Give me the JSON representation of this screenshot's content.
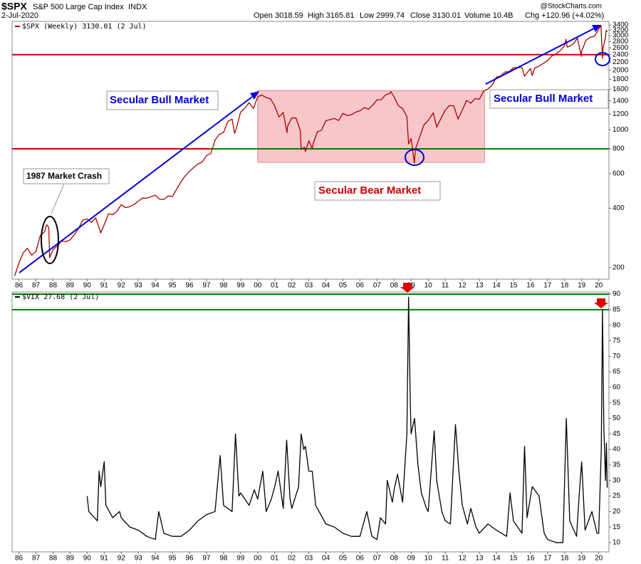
{
  "chart_data": [
    {
      "type": "line",
      "title": "$SPX",
      "subtitle": "S&P 500 Large Cap Index",
      "exchange": "INDX",
      "date": "2-Jul-2020",
      "stats": [
        "Open 3018.59",
        "High 3165.81",
        "Low 2999.74",
        "Close 3130.01",
        "Volume 10.4B",
        "Chg +120.96 (+4.02%)"
      ],
      "source": "@StockCharts.com",
      "annotations": [
        "Secular Bull Market",
        "Secular Bull Market",
        "Secular Bear Market",
        "1987 Market Crash"
      ],
      "log_y": true,
      "xlim": [
        1985.6,
        2020.6
      ],
      "ylim": [
        175,
        3540
      ],
      "yticks": [
        200,
        400,
        600,
        800,
        1000,
        1200,
        1400,
        1600,
        1800,
        2000,
        2200,
        2400,
        2600,
        2800,
        3000,
        3200,
        3400
      ],
      "xticks": [
        {
          "value": 1986,
          "label": "86"
        },
        {
          "value": 1987,
          "label": "87"
        },
        {
          "value": 1988,
          "label": "88"
        },
        {
          "value": 1989,
          "label": "89"
        },
        {
          "value": 1990,
          "label": "90"
        },
        {
          "value": 1991,
          "label": "91"
        },
        {
          "value": 1992,
          "label": "92"
        },
        {
          "value": 1993,
          "label": "93"
        },
        {
          "value": 1994,
          "label": "94"
        },
        {
          "value": 1995,
          "label": "95"
        },
        {
          "value": 1996,
          "label": "96"
        },
        {
          "value": 1997,
          "label": "97"
        },
        {
          "value": 1998,
          "label": "98"
        },
        {
          "value": 1999,
          "label": "99"
        },
        {
          "value": 2000,
          "label": "00"
        },
        {
          "value": 2001,
          "label": "01"
        },
        {
          "value": 2002,
          "label": "02"
        },
        {
          "value": 2003,
          "label": "03"
        },
        {
          "value": 2004,
          "label": "04"
        },
        {
          "value": 2005,
          "label": "05"
        },
        {
          "value": 2006,
          "label": "06"
        },
        {
          "value": 2007,
          "label": "07"
        },
        {
          "value": 2008,
          "label": "08"
        },
        {
          "value": 2009,
          "label": "09"
        },
        {
          "value": 2010,
          "label": "10"
        },
        {
          "value": 2011,
          "label": "11"
        },
        {
          "value": 2012,
          "label": "12"
        },
        {
          "value": 2013,
          "label": "13"
        },
        {
          "value": 2014,
          "label": "14"
        },
        {
          "value": 2015,
          "label": "15"
        },
        {
          "value": 2016,
          "label": "16"
        },
        {
          "value": 2017,
          "label": "17"
        },
        {
          "value": 2018,
          "label": "18"
        },
        {
          "value": 2019,
          "label": "19"
        },
        {
          "value": 2020,
          "label": "20"
        }
      ],
      "shade": {
        "xlim": [
          2000.0,
          2013.3
        ],
        "ylim": [
          683,
          1580
        ],
        "color": "#f4b8bd"
      },
      "hlines": [
        {
          "value": 2400,
          "color": "#cc0000"
        },
        {
          "value": 800,
          "color": "#cc0000",
          "xlim": [
            1985.6,
            1997.2
          ]
        },
        {
          "value": 800,
          "color": "#008000",
          "xlim": [
            1997.2,
            2020.6
          ]
        }
      ],
      "x": [
        1985.75,
        1986,
        1986.25,
        1986.5,
        1986.75,
        1987,
        1987.25,
        1987.5,
        1987.62,
        1987.75,
        1987.8,
        1988,
        1988.25,
        1988.5,
        1988.75,
        1989,
        1989.25,
        1989.5,
        1989.75,
        1990,
        1990.25,
        1990.5,
        1990.8,
        1991,
        1991.25,
        1991.5,
        1991.75,
        1992,
        1992.25,
        1992.5,
        1992.75,
        1993,
        1993.25,
        1993.5,
        1993.75,
        1994,
        1994.25,
        1994.5,
        1994.75,
        1995,
        1995.25,
        1995.5,
        1995.75,
        1996,
        1996.25,
        1996.5,
        1996.75,
        1997,
        1997.25,
        1997.5,
        1997.75,
        1998,
        1998.25,
        1998.5,
        1998.65,
        1998.75,
        1999,
        1999.25,
        1999.5,
        1999.75,
        2000,
        2000.25,
        2000.5,
        2000.75,
        2001,
        2001.25,
        2001.5,
        2001.72,
        2001.75,
        2002,
        2002.25,
        2002.5,
        2002.55,
        2002.75,
        2002.8,
        2003,
        2003.2,
        2003.25,
        2003.5,
        2003.75,
        2004,
        2004.25,
        2004.5,
        2004.75,
        2005,
        2005.25,
        2005.5,
        2005.75,
        2006,
        2006.25,
        2006.5,
        2006.75,
        2007,
        2007.25,
        2007.5,
        2007.75,
        2007.8,
        2008,
        2008.25,
        2008.5,
        2008.75,
        2008.85,
        2009,
        2009.19,
        2009.25,
        2009.5,
        2009.75,
        2010,
        2010.3,
        2010.5,
        2010.75,
        2011,
        2011.25,
        2011.5,
        2011.75,
        2012,
        2012.25,
        2012.5,
        2012.75,
        2013,
        2013.25,
        2013.5,
        2013.75,
        2014,
        2014.25,
        2014.5,
        2014.75,
        2015,
        2015.25,
        2015.5,
        2015.65,
        2015.75,
        2016,
        2016.1,
        2016.25,
        2016.5,
        2016.75,
        2017,
        2017.25,
        2017.5,
        2017.75,
        2018,
        2018.08,
        2018.15,
        2018.25,
        2018.5,
        2018.75,
        2018.98,
        2019,
        2019.25,
        2019.5,
        2019.75,
        2020,
        2020.13,
        2020.22,
        2020.25,
        2020.4,
        2020.44,
        2020.5
      ],
      "series": [
        {
          "name": "$SPX (Weekly) 3130.01 (2 Jul)",
          "color": "#b00000",
          "values": [
            182,
            211,
            238,
            251,
            231,
            242,
            291,
            304,
            330,
            321,
            225,
            247,
            258,
            273,
            271,
            277,
            294,
            317,
            349,
            353,
            339,
            358,
            300,
            330,
            375,
            371,
            387,
            417,
            403,
            408,
            418,
            435,
            451,
            450,
            458,
            466,
            445,
            444,
            462,
            459,
            500,
            544,
            584,
            615,
            645,
            670,
            687,
            740,
            757,
            885,
            947,
            970,
            1101,
            1133,
            957,
            1017,
            1229,
            1286,
            1372,
            1282,
            1469,
            1498,
            1454,
            1436,
            1320,
            1160,
            1224,
            965,
            1040,
            1148,
            1147,
            990,
            797,
            815,
            776,
            880,
            800,
            848,
            975,
            996,
            1111,
            1126,
            1140,
            1114,
            1211,
            1180,
            1191,
            1228,
            1248,
            1294,
            1270,
            1335,
            1418,
            1420,
            1503,
            1526,
            1562,
            1468,
            1322,
            1280,
            1166,
            848,
            903,
            676,
            797,
            919,
            1057,
            1115,
            1217,
            1030,
            1141,
            1258,
            1326,
            1320,
            1131,
            1257,
            1408,
            1362,
            1440,
            1426,
            1569,
            1606,
            1681,
            1848,
            1872,
            1960,
            1972,
            2058,
            2067,
            2063,
            1868,
            1920,
            2043,
            1880,
            2059,
            2099,
            2168,
            2238,
            2362,
            2423,
            2519,
            2673,
            2872,
            2620,
            2640,
            2718,
            2913,
            2350,
            2506,
            2834,
            2941,
            2976,
            3230,
            3380,
            2304,
            2585,
            2950,
            3193,
            3130.01
          ]
        }
      ]
    },
    {
      "type": "line",
      "xlim": [
        1985.6,
        2020.6
      ],
      "ylim": [
        7.0,
        90.7
      ],
      "yticks": [
        10,
        15,
        20,
        25,
        30,
        35,
        40,
        45,
        50,
        55,
        60,
        65,
        70,
        75,
        80,
        85,
        90
      ],
      "xticks": [
        {
          "value": 1986,
          "label": "86"
        },
        {
          "value": 1987,
          "label": "87"
        },
        {
          "value": 1988,
          "label": "88"
        },
        {
          "value": 1989,
          "label": "89"
        },
        {
          "value": 1990,
          "label": "90"
        },
        {
          "value": 1991,
          "label": "91"
        },
        {
          "value": 1992,
          "label": "92"
        },
        {
          "value": 1993,
          "label": "93"
        },
        {
          "value": 1994,
          "label": "94"
        },
        {
          "value": 1995,
          "label": "95"
        },
        {
          "value": 1996,
          "label": "96"
        },
        {
          "value": 1997,
          "label": "97"
        },
        {
          "value": 1998,
          "label": "98"
        },
        {
          "value": 1999,
          "label": "99"
        },
        {
          "value": 2000,
          "label": "00"
        },
        {
          "value": 2001,
          "label": "01"
        },
        {
          "value": 2002,
          "label": "02"
        },
        {
          "value": 2003,
          "label": "03"
        },
        {
          "value": 2004,
          "label": "04"
        },
        {
          "value": 2005,
          "label": "05"
        },
        {
          "value": 2006,
          "label": "06"
        },
        {
          "value": 2007,
          "label": "07"
        },
        {
          "value": 2008,
          "label": "08"
        },
        {
          "value": 2009,
          "label": "09"
        },
        {
          "value": 2010,
          "label": "10"
        },
        {
          "value": 2011,
          "label": "11"
        },
        {
          "value": 2012,
          "label": "12"
        },
        {
          "value": 2013,
          "label": "13"
        },
        {
          "value": 2014,
          "label": "14"
        },
        {
          "value": 2015,
          "label": "15"
        },
        {
          "value": 2016,
          "label": "16"
        },
        {
          "value": 2017,
          "label": "17"
        },
        {
          "value": 2018,
          "label": "18"
        },
        {
          "value": 2019,
          "label": "19"
        },
        {
          "value": 2020,
          "label": "20"
        }
      ],
      "hlines": [
        {
          "value": 90,
          "color": "#008000"
        },
        {
          "value": 85,
          "color": "#008000"
        }
      ],
      "x": [
        1990,
        1990.1,
        1990.6,
        1990.7,
        1990.8,
        1991,
        1991.1,
        1991.5,
        1991.9,
        1992,
        1992.5,
        1993,
        1993.5,
        1994,
        1994.2,
        1994.5,
        1995,
        1995.5,
        1996,
        1996.5,
        1997,
        1997.5,
        1997.8,
        1998,
        1998.5,
        1998.7,
        1998.9,
        1999,
        1999.5,
        1999.8,
        2000,
        2000.3,
        2000.5,
        2000.8,
        2001,
        2001.2,
        2001.5,
        2001.7,
        2001.9,
        2002,
        2002.4,
        2002.55,
        2002.7,
        2002.8,
        2003,
        2003.2,
        2003.4,
        2003.7,
        2004,
        2004.5,
        2005,
        2005.5,
        2006,
        2006.4,
        2006.7,
        2007,
        2007.2,
        2007.5,
        2007.6,
        2007.9,
        2008,
        2008.2,
        2008.5,
        2008.75,
        2008.85,
        2008.95,
        2009,
        2009.2,
        2009.4,
        2009.6,
        2009.9,
        2010,
        2010.35,
        2010.5,
        2010.8,
        2011,
        2011.3,
        2011.6,
        2011.8,
        2012,
        2012.3,
        2012.5,
        2012.8,
        2013,
        2013.5,
        2014,
        2014.3,
        2014.6,
        2014.8,
        2015,
        2015.5,
        2015.65,
        2015.8,
        2016.1,
        2016.5,
        2016.8,
        2017,
        2017.5,
        2017.9,
        2018.1,
        2018.3,
        2018.7,
        2018.85,
        2019,
        2019.2,
        2019.6,
        2019.9,
        2020,
        2020.15,
        2020.22,
        2020.3,
        2020.4,
        2020.45,
        2020.5
      ],
      "series": [
        {
          "name": "$VIX 27.68 (2 Jul)",
          "color": "#000000",
          "values": [
            25,
            20,
            17,
            33,
            28,
            36,
            22,
            18,
            20,
            18,
            15,
            14,
            12,
            11,
            20,
            13,
            12,
            12,
            14,
            17,
            19,
            20,
            38,
            22,
            20,
            45,
            25,
            26,
            22,
            27,
            24,
            33,
            20,
            24,
            28,
            33,
            21,
            43,
            24,
            21,
            28,
            45,
            40,
            41,
            33,
            33,
            22,
            19,
            16,
            15,
            13,
            12,
            12,
            20,
            12,
            11,
            18,
            16,
            30,
            23,
            27,
            32,
            23,
            45,
            89,
            55,
            45,
            50,
            35,
            26,
            21,
            20,
            46,
            30,
            20,
            17,
            16,
            48,
            33,
            22,
            16,
            21,
            15,
            13,
            16,
            14,
            13,
            12,
            26,
            17,
            13,
            41,
            18,
            28,
            25,
            13,
            11,
            10,
            10,
            50,
            17,
            12,
            25,
            36,
            14,
            20,
            13,
            13,
            40,
            85,
            47,
            30,
            42,
            27.68
          ]
        }
      ]
    }
  ]
}
